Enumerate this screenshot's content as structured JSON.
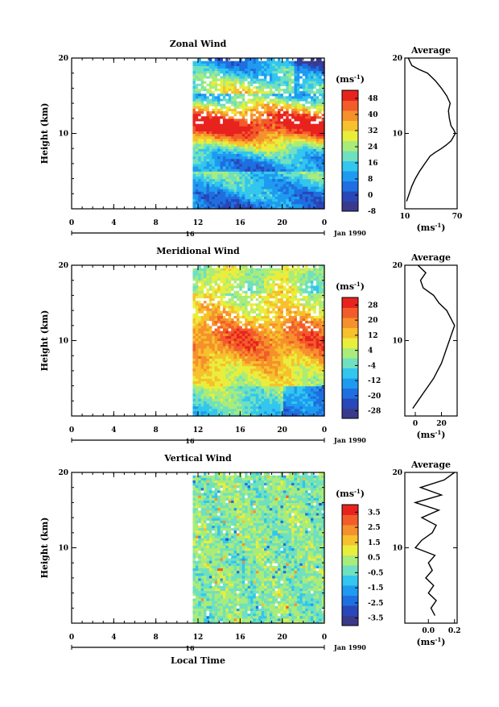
{
  "colors": {
    "scale": [
      "#3a3a8c",
      "#2847b8",
      "#1f6fe0",
      "#1e9bf0",
      "#33c6ee",
      "#6fe0c0",
      "#a9ec7a",
      "#e9ee3c",
      "#f6c12c",
      "#f6902c",
      "#f25c2a",
      "#e8231e"
    ],
    "zero_line": "#000000",
    "missing": "#ffffff"
  },
  "chart_data": [
    {
      "type": "heatmap",
      "title": "Zonal Wind",
      "ylabel": "Height (km)",
      "xlabel": "",
      "yticks": [
        "20",
        "10"
      ],
      "xticks": [
        "0",
        "4",
        "8",
        "12",
        "16",
        "20",
        "0"
      ],
      "ylim": [
        0,
        20
      ],
      "xlim": [
        0,
        24
      ],
      "data_start_hour": 11.5,
      "date_tick": "16",
      "date_label": "Jan 1990",
      "colorbar": {
        "unit": "(ms-1)",
        "ticks": [
          "48",
          "40",
          "32",
          "24",
          "16",
          "8",
          "0",
          "-8"
        ],
        "range": [
          -8,
          52
        ]
      },
      "profile": {
        "title": "Average",
        "yticks": [
          "20",
          "10"
        ],
        "xticks": [
          "10",
          "70"
        ],
        "xlabel": "(ms-1)",
        "xlim": [
          10,
          70
        ],
        "points": [
          [
            12,
            1
          ],
          [
            15,
            2
          ],
          [
            18,
            3
          ],
          [
            22,
            4
          ],
          [
            27,
            5
          ],
          [
            33,
            6
          ],
          [
            39,
            7
          ],
          [
            45,
            7.5
          ],
          [
            52,
            8
          ],
          [
            58,
            8.5
          ],
          [
            63,
            9
          ],
          [
            68,
            10
          ],
          [
            66,
            10.5
          ],
          [
            63,
            11
          ],
          [
            61,
            12
          ],
          [
            60,
            13
          ],
          [
            62,
            14
          ],
          [
            58,
            15
          ],
          [
            52,
            16
          ],
          [
            45,
            17
          ],
          [
            36,
            18
          ],
          [
            26,
            18.5
          ],
          [
            18,
            19
          ],
          [
            14,
            20
          ]
        ]
      }
    },
    {
      "type": "heatmap",
      "title": "Meridional Wind",
      "ylabel": "Height (km)",
      "xlabel": "",
      "yticks": [
        "20",
        "10"
      ],
      "xticks": [
        "0",
        "4",
        "8",
        "12",
        "16",
        "20",
        "0"
      ],
      "ylim": [
        0,
        20
      ],
      "xlim": [
        0,
        24
      ],
      "data_start_hour": 11.5,
      "date_tick": "16",
      "date_label": "Jan 1990",
      "colorbar": {
        "unit": "(ms-1)",
        "ticks": [
          "28",
          "20",
          "12",
          "4",
          "-4",
          "-12",
          "-20",
          "-28"
        ],
        "range": [
          -32,
          32
        ]
      },
      "profile": {
        "title": "Average",
        "yticks": [
          "20",
          "10"
        ],
        "xticks": [
          "0",
          "20"
        ],
        "xlabel": "(ms-1)",
        "xlim": [
          -8,
          32
        ],
        "points": [
          [
            -2,
            1
          ],
          [
            2,
            2
          ],
          [
            6,
            3
          ],
          [
            10,
            4
          ],
          [
            14,
            5
          ],
          [
            17,
            6
          ],
          [
            20,
            7
          ],
          [
            22,
            8
          ],
          [
            24,
            9
          ],
          [
            26,
            10
          ],
          [
            28,
            11
          ],
          [
            30,
            12
          ],
          [
            27,
            13
          ],
          [
            24,
            14
          ],
          [
            18,
            15
          ],
          [
            14,
            16
          ],
          [
            6,
            17
          ],
          [
            4,
            18
          ],
          [
            8,
            19
          ],
          [
            2,
            20
          ]
        ]
      }
    },
    {
      "type": "heatmap",
      "title": "Vertical Wind",
      "ylabel": "Height (km)",
      "xlabel": "Local Time",
      "yticks": [
        "20",
        "10"
      ],
      "xticks": [
        "0",
        "4",
        "8",
        "12",
        "16",
        "20",
        "0"
      ],
      "ylim": [
        0,
        20
      ],
      "xlim": [
        0,
        24
      ],
      "data_start_hour": 11.5,
      "date_tick": "16",
      "date_label": "Jan 1990",
      "colorbar": {
        "unit": "(ms-1)",
        "ticks": [
          "3.5",
          "2.5",
          "1.5",
          "0.5",
          "-0.5",
          "-1.5",
          "-2.5",
          "-3.5"
        ],
        "range": [
          -4,
          4
        ]
      },
      "profile": {
        "title": "Average",
        "yticks": [
          "20",
          "10"
        ],
        "xticks": [
          "0.0",
          "0.2"
        ],
        "xlabel": "(ms-1)",
        "xlim": [
          -0.18,
          0.22
        ],
        "points": [
          [
            0.05,
            1
          ],
          [
            0.02,
            2
          ],
          [
            0.06,
            3
          ],
          [
            0.0,
            4
          ],
          [
            0.04,
            5
          ],
          [
            -0.02,
            6
          ],
          [
            0.03,
            7
          ],
          [
            0.0,
            8
          ],
          [
            0.05,
            9
          ],
          [
            -0.1,
            10
          ],
          [
            -0.05,
            11
          ],
          [
            0.03,
            12
          ],
          [
            0.06,
            13
          ],
          [
            -0.05,
            14
          ],
          [
            0.08,
            15
          ],
          [
            -0.1,
            16
          ],
          [
            0.1,
            17
          ],
          [
            -0.06,
            18
          ],
          [
            0.12,
            19
          ],
          [
            0.2,
            20
          ]
        ]
      }
    }
  ]
}
